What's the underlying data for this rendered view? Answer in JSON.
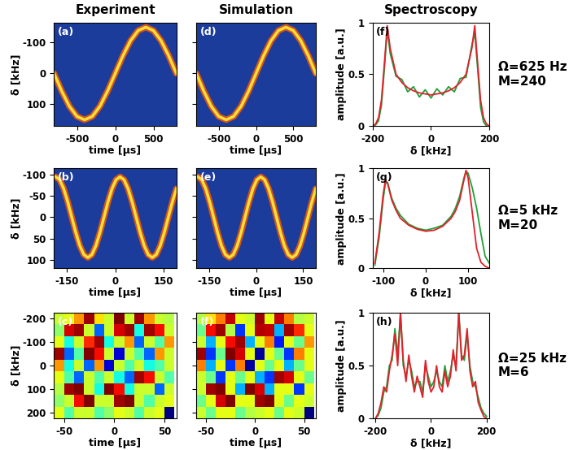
{
  "chart_data": [
    {
      "type": "ridge",
      "panel": "(a)",
      "title": "Experiment",
      "x_label": "time [µs]",
      "y_label": "δ [kHz]",
      "color": "#f2e03a",
      "x": [
        -800,
        -700,
        -600,
        -500,
        -400,
        -300,
        -200,
        -100,
        0,
        100,
        200,
        300,
        400,
        500,
        600,
        700,
        800
      ],
      "values": [
        0,
        57,
        106,
        139,
        150,
        139,
        106,
        57,
        0,
        -57,
        -106,
        -139,
        -150,
        -139,
        -106,
        -57,
        0
      ],
      "xlim": [
        -800,
        800
      ],
      "xticks": [
        -500,
        0,
        500
      ],
      "ylim": [
        170,
        -165
      ],
      "yticks": [
        -100,
        0,
        100
      ]
    },
    {
      "type": "ridge",
      "panel": "(d)",
      "title": "Simulation",
      "x_label": "time [µs]",
      "tick_labels": "x",
      "color": "#f2e03a",
      "x": [
        -800,
        -700,
        -600,
        -500,
        -400,
        -300,
        -200,
        -100,
        0,
        100,
        200,
        300,
        400,
        500,
        600,
        700,
        800
      ],
      "values": [
        0,
        57,
        106,
        139,
        150,
        139,
        106,
        57,
        0,
        -57,
        -106,
        -139,
        -150,
        -139,
        -106,
        -57,
        0
      ],
      "xlim": [
        -800,
        800
      ],
      "xticks": [
        -500,
        0,
        500
      ],
      "ylim": [
        170,
        -165
      ],
      "yticks": [
        -100,
        0,
        100
      ]
    },
    {
      "type": "line",
      "panel": "(f)",
      "title": "Spectroscopy",
      "x_label": "δ [kHz]",
      "y_label": "amplitude [a.u.]",
      "annotation": "Ω=625 Hz\nM=240",
      "x": [
        -200,
        -190,
        -180,
        -170,
        -160,
        -150,
        -140,
        -120,
        -100,
        -80,
        -60,
        -40,
        -20,
        0,
        20,
        40,
        60,
        80,
        100,
        120,
        140,
        150,
        160,
        170,
        180,
        190,
        200
      ],
      "series": [
        {
          "color": "#1fa038",
          "values": [
            0.0,
            0.01,
            0.05,
            0.2,
            0.55,
            0.93,
            0.7,
            0.48,
            0.45,
            0.33,
            0.38,
            0.28,
            0.35,
            0.27,
            0.36,
            0.3,
            0.38,
            0.33,
            0.46,
            0.47,
            0.78,
            0.9,
            0.55,
            0.18,
            0.04,
            0.0,
            0.0
          ]
        },
        {
          "color": "#e0202a",
          "values": [
            0.0,
            0.02,
            0.08,
            0.25,
            0.6,
            0.97,
            0.75,
            0.5,
            0.42,
            0.37,
            0.34,
            0.32,
            0.31,
            0.3,
            0.31,
            0.32,
            0.34,
            0.37,
            0.42,
            0.5,
            0.75,
            0.97,
            0.6,
            0.25,
            0.08,
            0.02,
            0.0
          ]
        }
      ],
      "xlim": [
        -200,
        200
      ],
      "xticks": [
        -200,
        0,
        200
      ],
      "ylim": [
        0,
        1
      ],
      "yticks": [
        0,
        0.5,
        1
      ]
    },
    {
      "type": "ridge",
      "panel": "(b)",
      "x_label": "time [µs]",
      "y_label": "δ [kHz]",
      "color": "#f2e03a",
      "x": [
        -185,
        -172.5,
        -160,
        -147.5,
        -135,
        -122.5,
        -110,
        -97.5,
        -85,
        -72.5,
        -60,
        -47.5,
        -35,
        -22.5,
        -10,
        2.5,
        15,
        27.5,
        40,
        52.5,
        65,
        77.5,
        90,
        102.5,
        115,
        127.5,
        140,
        152.5,
        165,
        177.5,
        190
      ],
      "values": [
        -95,
        -88,
        -67,
        -36,
        0,
        36,
        67,
        88,
        95,
        88,
        67,
        36,
        0,
        -36,
        -67,
        -88,
        -95,
        -88,
        -67,
        -36,
        0,
        36,
        67,
        88,
        95,
        88,
        67,
        36,
        0,
        -36,
        -67
      ],
      "xlim": [
        -190,
        190
      ],
      "xticks": [
        -150,
        0,
        150
      ],
      "ylim": [
        120,
        -115
      ],
      "yticks": [
        -100,
        -50,
        0,
        50,
        100
      ]
    },
    {
      "type": "ridge",
      "panel": "(e)",
      "x_label": "time [µs]",
      "tick_labels": "x",
      "color": "#f2e03a",
      "x": [
        -185,
        -172.5,
        -160,
        -147.5,
        -135,
        -122.5,
        -110,
        -97.5,
        -85,
        -72.5,
        -60,
        -47.5,
        -35,
        -22.5,
        -10,
        2.5,
        15,
        27.5,
        40,
        52.5,
        65,
        77.5,
        90,
        102.5,
        115,
        127.5,
        140,
        152.5,
        165,
        177.5,
        190
      ],
      "values": [
        -95,
        -88,
        -67,
        -36,
        0,
        36,
        67,
        88,
        95,
        88,
        67,
        36,
        0,
        -36,
        -67,
        -88,
        -95,
        -88,
        -67,
        -36,
        0,
        36,
        67,
        88,
        95,
        88,
        67,
        36,
        0,
        -36,
        -67
      ],
      "xlim": [
        -190,
        190
      ],
      "xticks": [
        -150,
        0,
        150
      ],
      "ylim": [
        120,
        -115
      ],
      "yticks": [
        -100,
        -50,
        0,
        50,
        100
      ]
    },
    {
      "type": "line",
      "panel": "(g)",
      "x_label": "δ [kHz]",
      "y_label": "amplitude [a.u.]",
      "annotation": "Ω=5 kHz\nM=20",
      "x": [
        -120,
        -110,
        -100,
        -95,
        -90,
        -80,
        -70,
        -60,
        -40,
        -20,
        0,
        20,
        40,
        60,
        70,
        80,
        90,
        95,
        100,
        110,
        120,
        130,
        140,
        150
      ],
      "series": [
        {
          "color": "#1fa038",
          "values": [
            0.03,
            0.3,
            0.7,
            0.85,
            0.86,
            0.7,
            0.6,
            0.53,
            0.44,
            0.4,
            0.38,
            0.4,
            0.43,
            0.52,
            0.6,
            0.72,
            0.9,
            0.97,
            0.95,
            0.8,
            0.6,
            0.35,
            0.12,
            0.05
          ]
        },
        {
          "color": "#e0202a",
          "values": [
            0.05,
            0.35,
            0.75,
            0.88,
            0.85,
            0.68,
            0.58,
            0.5,
            0.43,
            0.39,
            0.37,
            0.38,
            0.42,
            0.5,
            0.57,
            0.68,
            0.88,
            0.98,
            0.9,
            0.55,
            0.2,
            0.06,
            0.02,
            0.0
          ]
        }
      ],
      "xlim": [
        -125,
        150
      ],
      "xticks": [
        -100,
        0,
        100
      ],
      "ylim": [
        0,
        1
      ],
      "yticks": [
        0,
        0.5,
        1
      ]
    },
    {
      "type": "heatmap",
      "panel": "(c)",
      "x_label": "time [µs]",
      "y_label": "δ [kHz]",
      "x": [
        -55,
        -45,
        -35,
        -25,
        -15,
        -5,
        5,
        15,
        25,
        35,
        45,
        55
      ],
      "y": [
        -200,
        -150,
        -100,
        -50,
        0,
        50,
        100,
        150,
        200
      ],
      "cells": [
        [
          0.7,
          0.72,
          0.8,
          0.95,
          0.75,
          0.7,
          0.97,
          0.7,
          0.95,
          0.8,
          0.7,
          0.68
        ],
        [
          0.65,
          0.92,
          0.95,
          0.7,
          0.45,
          0.7,
          0.92,
          0.95,
          0.55,
          0.95,
          0.9,
          0.7
        ],
        [
          0.72,
          0.55,
          0.7,
          0.88,
          0.95,
          0.55,
          0.7,
          0.8,
          0.45,
          0.7,
          0.6,
          0.8
        ],
        [
          0.95,
          0.45,
          0.6,
          0.97,
          0.9,
          0.7,
          0.35,
          0.7,
          0.6,
          0.45,
          0.8,
          0.7
        ],
        [
          0.8,
          0.55,
          0.7,
          0.45,
          0.8,
          0.35,
          0.7,
          0.6,
          0.7,
          0.55,
          0.6,
          0.7
        ],
        [
          0.72,
          0.6,
          0.45,
          0.7,
          0.6,
          0.7,
          0.55,
          0.45,
          0.95,
          0.9,
          0.7,
          0.6
        ],
        [
          0.68,
          0.95,
          0.97,
          0.7,
          0.55,
          0.97,
          0.9,
          0.55,
          0.7,
          0.7,
          0.45,
          0.7
        ],
        [
          0.65,
          0.7,
          0.9,
          0.97,
          0.7,
          0.7,
          0.95,
          0.97,
          0.7,
          0.6,
          0.7,
          0.72
        ],
        [
          0.72,
          0.6,
          0.7,
          0.7,
          0.6,
          0.65,
          0.72,
          0.7,
          0.6,
          0.7,
          0.72,
          0.3
        ]
      ],
      "xlim": [
        -60,
        62
      ],
      "xticks": [
        -50,
        0,
        50
      ],
      "ylim": [
        225,
        -225
      ],
      "yticks": [
        -200,
        -100,
        0,
        100,
        200
      ]
    },
    {
      "type": "heatmap",
      "panel": "(f)",
      "x_label": "time [µs]",
      "tick_labels": "x",
      "x": [
        -55,
        -45,
        -35,
        -25,
        -15,
        -5,
        5,
        15,
        25,
        35,
        45,
        55
      ],
      "y": [
        -200,
        -150,
        -100,
        -50,
        0,
        50,
        100,
        150,
        200
      ],
      "cells": [
        [
          0.68,
          0.75,
          0.82,
          0.93,
          0.72,
          0.7,
          0.95,
          0.72,
          0.93,
          0.82,
          0.68,
          0.7
        ],
        [
          0.62,
          0.9,
          0.95,
          0.68,
          0.42,
          0.72,
          0.94,
          0.93,
          0.5,
          0.95,
          0.88,
          0.72
        ],
        [
          0.7,
          0.5,
          0.72,
          0.9,
          0.95,
          0.5,
          0.72,
          0.82,
          0.4,
          0.72,
          0.62,
          0.8
        ],
        [
          0.95,
          0.42,
          0.62,
          0.97,
          0.92,
          0.72,
          0.32,
          0.72,
          0.62,
          0.42,
          0.82,
          0.72
        ],
        [
          0.82,
          0.5,
          0.72,
          0.42,
          0.82,
          0.32,
          0.72,
          0.62,
          0.72,
          0.5,
          0.62,
          0.72
        ],
        [
          0.7,
          0.62,
          0.42,
          0.72,
          0.62,
          0.72,
          0.5,
          0.42,
          0.95,
          0.92,
          0.72,
          0.62
        ],
        [
          0.7,
          0.95,
          0.97,
          0.72,
          0.5,
          0.97,
          0.92,
          0.5,
          0.72,
          0.72,
          0.42,
          0.72
        ],
        [
          0.62,
          0.72,
          0.92,
          0.97,
          0.72,
          0.72,
          0.95,
          0.97,
          0.72,
          0.62,
          0.72,
          0.7
        ],
        [
          0.7,
          0.62,
          0.72,
          0.72,
          0.62,
          0.68,
          0.7,
          0.72,
          0.62,
          0.72,
          0.7,
          0.3
        ]
      ],
      "xlim": [
        -60,
        62
      ],
      "xticks": [
        -50,
        0,
        50
      ],
      "ylim": [
        225,
        -225
      ],
      "yticks": [
        -200,
        -100,
        0,
        100,
        200
      ]
    },
    {
      "type": "line",
      "panel": "(h)",
      "x_label": "δ [kHz]",
      "y_label": "amplitude [a.u.]",
      "annotation": "Ω=25 kHz\nM=6",
      "x": [
        -200,
        -190,
        -180,
        -170,
        -160,
        -150,
        -140,
        -130,
        -120,
        -110,
        -100,
        -90,
        -80,
        -70,
        -60,
        -50,
        -40,
        -30,
        -20,
        -10,
        0,
        10,
        20,
        30,
        40,
        50,
        60,
        70,
        80,
        90,
        100,
        110,
        120,
        130,
        140,
        150,
        160,
        170,
        180,
        190,
        200
      ],
      "series": [
        {
          "color": "#1fa038",
          "values": [
            0.0,
            0.03,
            0.1,
            0.25,
            0.3,
            0.5,
            0.55,
            0.85,
            0.6,
            1.0,
            0.5,
            0.4,
            0.55,
            0.45,
            0.3,
            0.35,
            0.35,
            0.25,
            0.5,
            0.4,
            0.3,
            0.35,
            0.45,
            0.35,
            0.3,
            0.5,
            0.35,
            0.45,
            0.6,
            0.5,
            1.0,
            0.6,
            0.55,
            0.8,
            0.5,
            0.35,
            0.3,
            0.2,
            0.1,
            0.05,
            0.02
          ]
        },
        {
          "color": "#e0202a",
          "values": [
            0.0,
            0.05,
            0.15,
            0.3,
            0.25,
            0.45,
            0.6,
            0.8,
            0.5,
            1.0,
            0.55,
            0.35,
            0.6,
            0.4,
            0.25,
            0.4,
            0.3,
            0.2,
            0.55,
            0.35,
            0.25,
            0.3,
            0.5,
            0.3,
            0.25,
            0.45,
            0.3,
            0.4,
            0.65,
            0.45,
            1.0,
            0.55,
            0.6,
            0.85,
            0.45,
            0.3,
            0.35,
            0.15,
            0.08,
            0.02,
            0.0
          ]
        }
      ],
      "xlim": [
        -210,
        210
      ],
      "xticks": [
        -200,
        0,
        200
      ],
      "ylim": [
        0,
        1
      ],
      "yticks": [
        0,
        0.5,
        1
      ]
    }
  ]
}
